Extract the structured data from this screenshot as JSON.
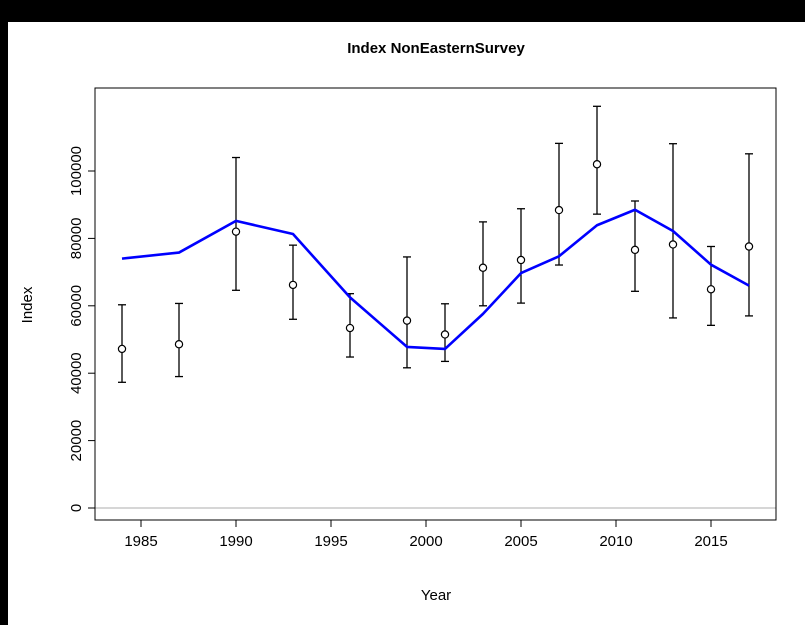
{
  "chart_data": {
    "type": "line",
    "title": "Index NonEasternSurvey",
    "xlabel": "Year",
    "ylabel": "Index",
    "xlim": [
      1983,
      2018
    ],
    "ylim": [
      0,
      120000
    ],
    "x_ticks": [
      1985,
      1990,
      1995,
      2000,
      2005,
      2010,
      2015
    ],
    "x_tick_labels": [
      "1985",
      "1990",
      "1995",
      "2000",
      "2005",
      "2010",
      "2015"
    ],
    "y_ticks": [
      0,
      20000,
      40000,
      60000,
      80000,
      100000
    ],
    "y_tick_labels": [
      "0",
      "20000",
      "40000",
      "60000",
      "80000",
      "100000"
    ],
    "zero_line": true,
    "grid": false,
    "colors": {
      "fitted_line": "#0000ff",
      "observed": "#000000",
      "zero_line": "#bebebe"
    },
    "fitted": {
      "x": [
        1984,
        1987,
        1990,
        1993,
        1996,
        1999,
        2001,
        2003,
        2005,
        2007,
        2009,
        2011,
        2013,
        2015,
        2017
      ],
      "y": [
        74000,
        75800,
        85200,
        81300,
        62500,
        47800,
        47200,
        57600,
        69700,
        74700,
        83900,
        88500,
        82200,
        72200,
        66000
      ]
    },
    "observed": {
      "x": [
        1984,
        1987,
        1990,
        1993,
        1996,
        1999,
        2001,
        2003,
        2005,
        2007,
        2009,
        2011,
        2013,
        2015,
        2017
      ],
      "y": [
        47200,
        48600,
        82000,
        66200,
        53400,
        55600,
        51500,
        71300,
        73600,
        88400,
        102000,
        76600,
        78200,
        64900,
        77600
      ],
      "lower": [
        37300,
        39000,
        64600,
        56000,
        44800,
        41600,
        43500,
        60000,
        60800,
        72100,
        87200,
        64300,
        56400,
        54200,
        57000
      ],
      "upper": [
        60300,
        60700,
        104000,
        78000,
        63600,
        74500,
        60600,
        84900,
        88800,
        108200,
        119200,
        91100,
        108100,
        77600,
        105100
      ]
    }
  }
}
